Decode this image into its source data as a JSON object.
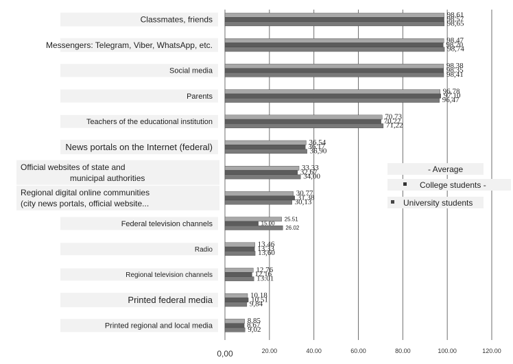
{
  "chart_data": {
    "type": "bar",
    "orientation": "horizontal",
    "categories": [
      "Classmates, friends",
      "Messengers: Telegram, Viber, WhatsApp, etc.",
      "Social media",
      "Parents",
      "Teachers of the educational institution",
      "News portals on the Internet (federal)",
      "Official websites of state and municipal authorities",
      "Regional digital online communities (city news portals, official website...",
      "Federal television channels",
      "Radio",
      "Regional television channels",
      "Printed federal media",
      "Printed regional and local media"
    ],
    "category_lines": [
      [
        "Classmates, friends"
      ],
      [
        "Messengers: Telegram, Viber, WhatsApp, etc."
      ],
      [
        "Social media"
      ],
      [
        "Parents"
      ],
      [
        "Teachers of the educational institution"
      ],
      [
        "News portals on the Internet (federal)"
      ],
      [
        "Official websites of state and",
        "municipal authorities"
      ],
      [
        "Regional digital online communities",
        "(city news portals, official website..."
      ],
      [
        "Federal television channels"
      ],
      [
        "Radio"
      ],
      [
        "Regional television channels"
      ],
      [
        "Printed federal media"
      ],
      [
        "Printed regional and local media"
      ]
    ],
    "series": [
      {
        "name": "- Average",
        "color": "#a8a8a8",
        "values": [
          98.61,
          98.47,
          98.38,
          96.78,
          70.73,
          36.54,
          33.33,
          30.77,
          25.51,
          13.46,
          12.76,
          10.18,
          8.85
        ],
        "labels": [
          "98,61",
          "98,47",
          "98,38",
          "96,78",
          "70,73",
          "36,54",
          "33,33",
          "30,77",
          "25.51",
          "13,46",
          "12,76",
          "10,18",
          "8,85"
        ]
      },
      {
        "name": "College students -",
        "color": "#5c5c5c",
        "values": [
          98.57,
          98.2,
          98.35,
          97.1,
          70.22,
          36.17,
          32.67,
          31.38,
          15.0,
          13.33,
          12.16,
          10.51,
          8.67
        ],
        "labels": [
          "98,57",
          "98,20",
          "98,35",
          "97,10",
          "70,22",
          "36,17",
          "32,67",
          "31,38",
          "15.00",
          "13,33",
          "12,16",
          "10,51",
          "8,67"
        ]
      },
      {
        "name": "University students",
        "color": "#7a7a7a",
        "values": [
          98.65,
          98.74,
          98.41,
          96.47,
          71.22,
          36.9,
          34.0,
          30.13,
          26.02,
          13.6,
          13.01,
          9.84,
          9.02
        ],
        "labels": [
          "98,65",
          "98,74",
          "98,41",
          "96,47",
          "71,22",
          "36,90",
          "34,00",
          "30,13",
          "26.02",
          "13,60",
          "13:01",
          "9,84",
          "9,02"
        ]
      }
    ],
    "x_ticks": [
      "0,00",
      "20.00",
      "40.00",
      "60.00",
      "80.00",
      "100.00",
      "120.00"
    ],
    "xlim": [
      0,
      120
    ],
    "grid": "vertical",
    "legend_position": "right",
    "legend": [
      "- Average",
      "College students -",
      "University students"
    ]
  }
}
